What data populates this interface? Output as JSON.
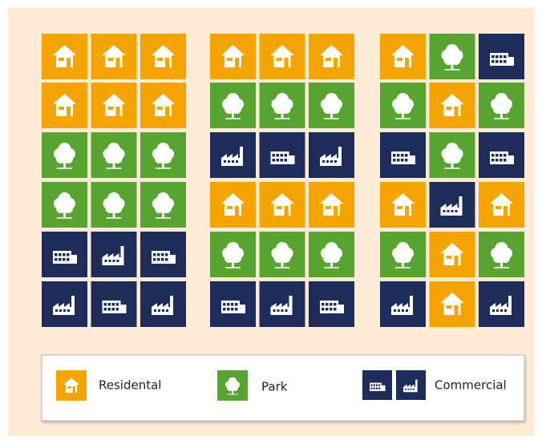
{
  "legend": {
    "items": [
      {
        "label": "Residental"
      },
      {
        "label": "Park"
      },
      {
        "label": "Commercial"
      }
    ]
  }
}
